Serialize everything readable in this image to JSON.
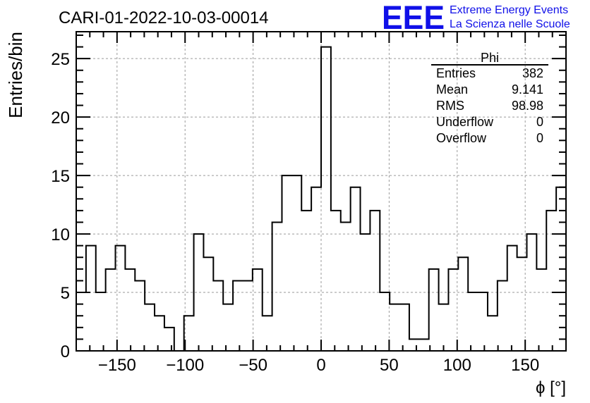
{
  "chart_data": {
    "type": "histogram",
    "title": "CARI-01-2022-10-03-00014",
    "xlabel": "ϕ [°]",
    "ylabel": "Entries/bin",
    "xlim": [
      -180,
      180
    ],
    "ylim": [
      0,
      27.3
    ],
    "grid": true,
    "bin_width": 7.2,
    "x_ticks": [
      -150,
      -100,
      -50,
      0,
      50,
      100,
      150
    ],
    "x_tick_labels": [
      "−150",
      "−100",
      "−50",
      "0",
      "50",
      "100",
      "150"
    ],
    "y_ticks": [
      0,
      5,
      10,
      15,
      20,
      25
    ],
    "y_tick_labels": [
      "0",
      "5",
      "10",
      "15",
      "20",
      "25"
    ],
    "values": [
      5,
      9,
      5,
      7,
      9,
      7,
      6,
      4,
      3,
      2,
      0,
      3,
      10,
      8,
      6,
      4,
      6,
      6,
      7,
      3,
      11,
      15,
      15,
      12,
      14,
      26,
      12,
      11,
      14,
      10,
      12,
      5,
      4,
      4,
      1,
      1,
      7,
      4,
      7,
      8,
      5,
      5,
      3,
      6,
      9,
      8,
      10,
      7,
      12,
      14
    ],
    "stats": {
      "title": "Phi",
      "rows": [
        {
          "label": "Entries",
          "value": "382"
        },
        {
          "label": "Mean",
          "value": "9.141"
        },
        {
          "label": "RMS",
          "value": "98.98"
        },
        {
          "label": "Underflow",
          "value": "0"
        },
        {
          "label": "Overflow",
          "value": "0"
        }
      ]
    }
  },
  "logo": {
    "text": "EEE",
    "line1": "Extreme Energy Events",
    "line2": "La Scienza nelle Scuole",
    "color": "#1010e8"
  }
}
